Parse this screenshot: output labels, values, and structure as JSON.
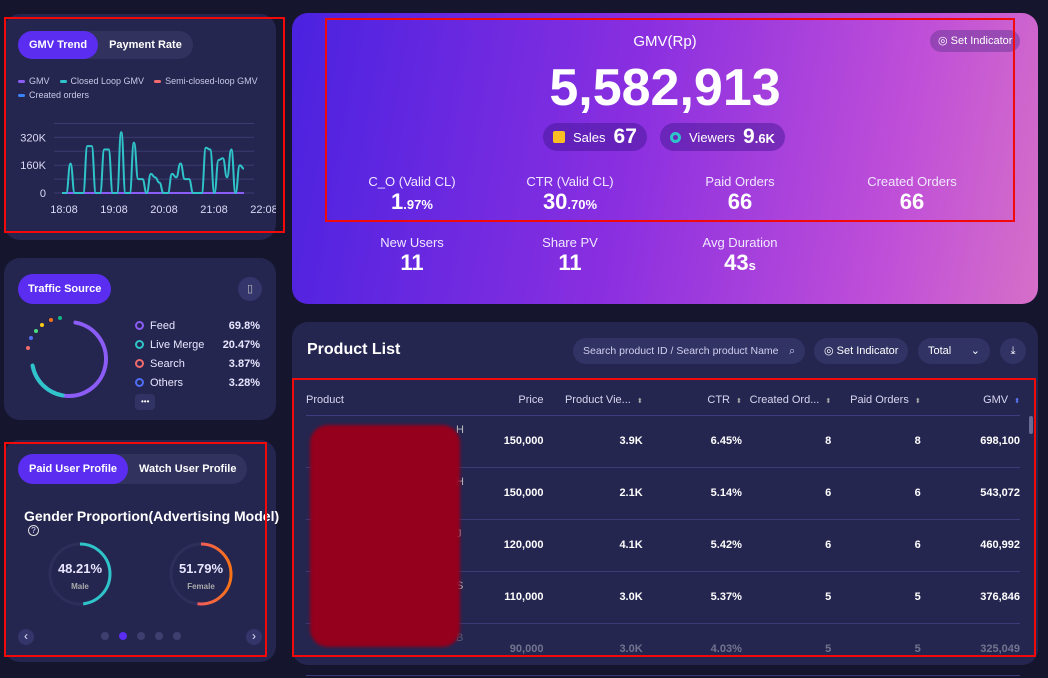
{
  "gmv_trend": {
    "tabs": [
      "GMV Trend",
      "Payment Rate"
    ],
    "legend": [
      {
        "label": "GMV",
        "color": "#8b5cf6"
      },
      {
        "label": "Closed Loop GMV",
        "color": "#2ec4c9"
      },
      {
        "label": "Semi-closed-loop GMV",
        "color": "#f06b6b"
      },
      {
        "label": "Created orders",
        "color": "#3b82f6"
      }
    ]
  },
  "chart_data": {
    "type": "line",
    "title": "GMV Trend",
    "x_ticks": [
      "18:08",
      "19:08",
      "20:08",
      "21:08",
      "22:08"
    ],
    "y_ticks": [
      "0",
      "160K",
      "320K"
    ],
    "ylim": [
      0,
      420000
    ],
    "series": [
      {
        "name": "Closed Loop GMV",
        "color": "#2ec4c9",
        "values": [
          0,
          0,
          170000,
          0,
          0,
          0,
          270000,
          270000,
          0,
          0,
          250000,
          250000,
          0,
          0,
          350000,
          0,
          0,
          290000,
          80000,
          80000,
          0,
          110000,
          90000,
          60000,
          0,
          0,
          110000,
          90000,
          170000,
          80000,
          80000,
          0,
          0,
          0,
          260000,
          250000,
          0,
          190000,
          200000,
          90000,
          250000,
          0,
          160000,
          140000
        ]
      },
      {
        "name": "GMV",
        "color": "#8b5cf6",
        "values": [
          0,
          0,
          0,
          0,
          0,
          0,
          0,
          0,
          0,
          0,
          0,
          0,
          0,
          0,
          0,
          0,
          0,
          0,
          0,
          0,
          0,
          0,
          0,
          0,
          0,
          0,
          0,
          0,
          0,
          0,
          0,
          0,
          0,
          0,
          0,
          0,
          0,
          0,
          0,
          0,
          0,
          0,
          0,
          0
        ]
      }
    ]
  },
  "traffic": {
    "title": "Traffic Source",
    "more": "•••",
    "items": [
      {
        "label": "Feed",
        "value": "69.8%",
        "color": "#8b5cf6"
      },
      {
        "label": "Live Merge",
        "value": "20.47%",
        "color": "#2ec4c9"
      },
      {
        "label": "Search",
        "value": "3.87%",
        "color": "#f06b6b"
      },
      {
        "label": "Others",
        "value": "3.28%",
        "color": "#4f6df5"
      }
    ]
  },
  "profile": {
    "tabs": [
      "Paid User Profile",
      "Watch User Profile"
    ],
    "title": "Gender Proportion(Advertising Model)",
    "help": "?",
    "male": {
      "value": "48.21%",
      "label": "Male",
      "fraction": 0.4821
    },
    "female": {
      "value": "51.79%",
      "label": "Female",
      "fraction": 0.5179
    },
    "prev": "‹",
    "next": "›",
    "pages": 5,
    "active_page": 2
  },
  "summary": {
    "title": "GMV(Rp)",
    "gmv": "5,582,913",
    "set_indicator": "Set Indicator",
    "sales_label": "Sales",
    "sales": "67",
    "viewers_label": "Viewers",
    "viewers": "9",
    "viewers_unit": ".6K",
    "metrics": [
      {
        "label": "C_O (Valid CL)",
        "value": "1",
        "unit": ".97%"
      },
      {
        "label": "CTR (Valid CL)",
        "value": "30",
        "unit": ".70%"
      },
      {
        "label": "Paid Orders",
        "value": "66",
        "unit": ""
      },
      {
        "label": "Created Orders",
        "value": "66",
        "unit": ""
      },
      {
        "label": "New Users",
        "value": "11",
        "unit": ""
      },
      {
        "label": "Share PV",
        "value": "11",
        "unit": ""
      },
      {
        "label": "Avg Duration",
        "value": "43",
        "unit": "s"
      }
    ]
  },
  "products": {
    "title": "Product List",
    "search_placeholder": "Search product ID / Search product Name",
    "set_indicator": "Set Indicator",
    "filter": "Total",
    "columns": [
      "Product",
      "Price",
      "Product Vie...",
      "CTR",
      "Created Ord...",
      "Paid Orders",
      "GMV"
    ],
    "rows": [
      [
        "H",
        "150,000",
        "3.9K",
        "6.45%",
        "8",
        "8",
        "698,100"
      ],
      [
        "H",
        "150,000",
        "2.1K",
        "5.14%",
        "6",
        "6",
        "543,072"
      ],
      [
        "J",
        "120,000",
        "4.1K",
        "5.42%",
        "6",
        "6",
        "460,992"
      ],
      [
        "S",
        "110,000",
        "3.0K",
        "5.37%",
        "5",
        "5",
        "376,846"
      ],
      [
        "B",
        "90,000",
        "3.0K",
        "4.03%",
        "5",
        "5",
        "325,049"
      ]
    ]
  }
}
